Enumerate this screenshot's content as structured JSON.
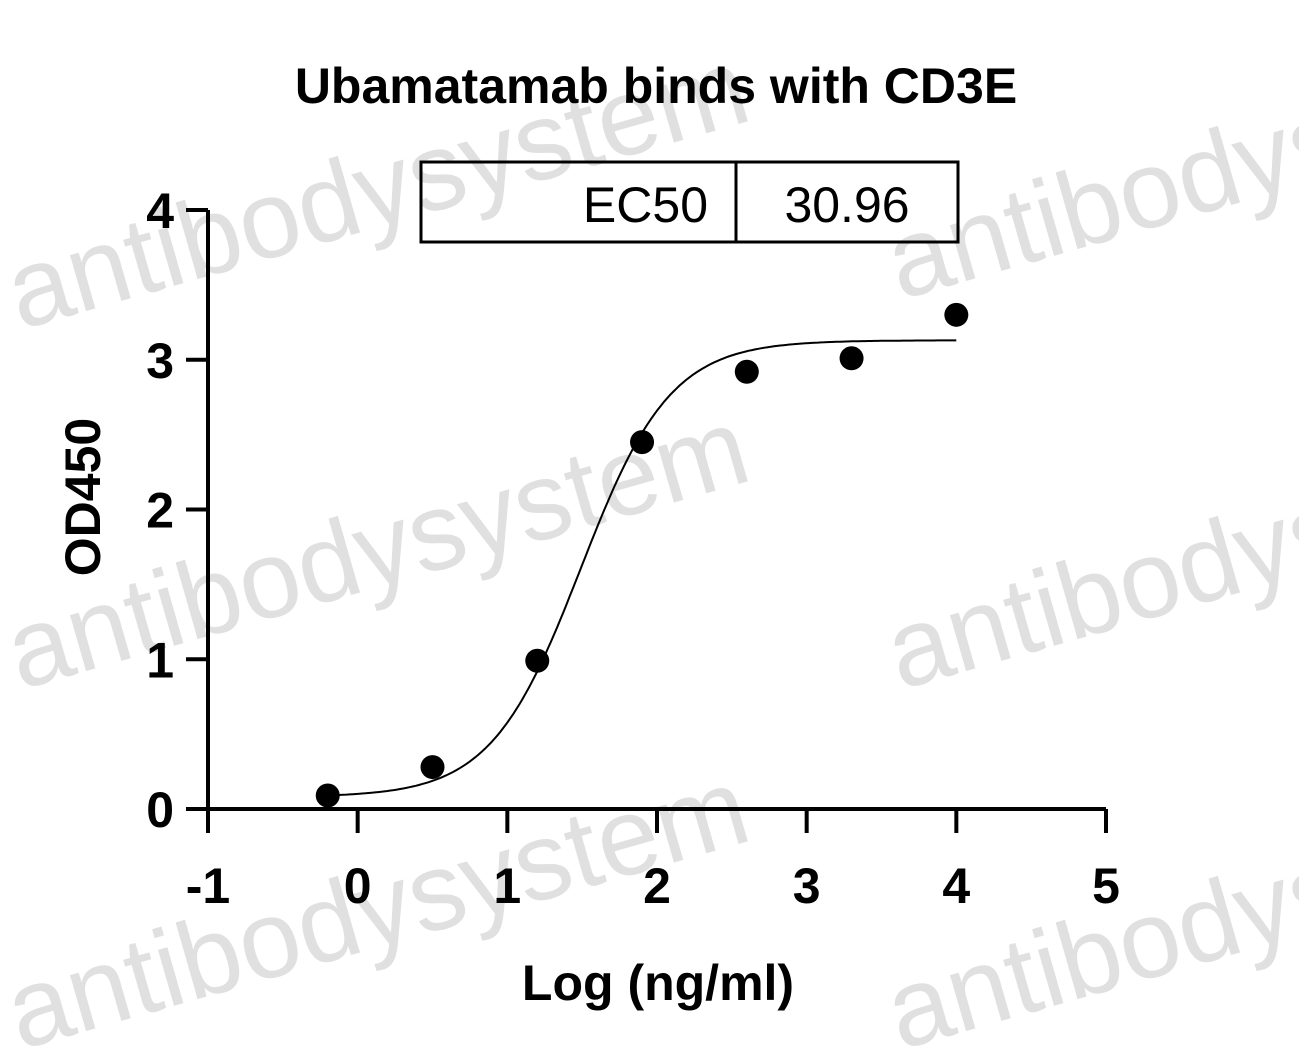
{
  "watermark": "antibodysystem",
  "chart_data": {
    "type": "scatter",
    "title": "Ubamatamab binds with CD3E",
    "xlabel": "Log (ng/ml)",
    "ylabel": "OD450",
    "xlim": [
      -1,
      5
    ],
    "ylim": [
      0,
      4
    ],
    "xticks": [
      -1,
      0,
      1,
      2,
      3,
      4,
      5
    ],
    "yticks": [
      0,
      1,
      2,
      3,
      4
    ],
    "points": [
      {
        "x": -0.2,
        "y": 0.09
      },
      {
        "x": 0.5,
        "y": 0.28
      },
      {
        "x": 1.2,
        "y": 0.99
      },
      {
        "x": 1.9,
        "y": 2.45
      },
      {
        "x": 2.6,
        "y": 2.92
      },
      {
        "x": 3.3,
        "y": 3.01
      },
      {
        "x": 4.0,
        "y": 3.3
      }
    ],
    "fit": {
      "model": "4PL",
      "bottom": 0.08,
      "top": 3.13,
      "hill": 1.45,
      "logEC50": 1.49,
      "xrange": [
        -0.2,
        4.0
      ]
    },
    "ec50_label": "EC50",
    "ec50_value": "30.96",
    "grid": false,
    "legend": "none"
  }
}
